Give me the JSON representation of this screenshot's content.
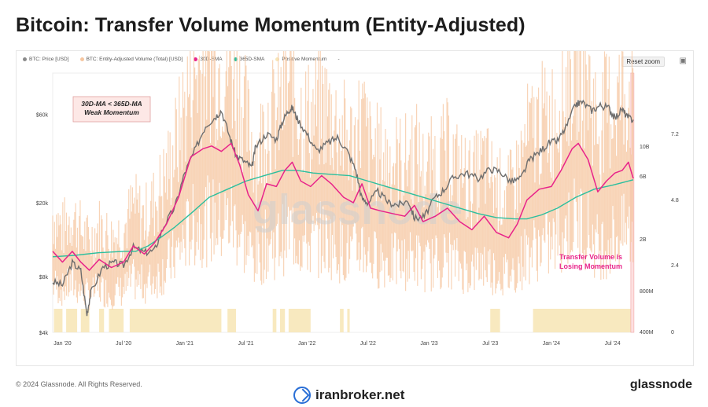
{
  "title": "Bitcoin: Transfer Volume Momentum (Entity-Adjusted)",
  "legend": [
    {
      "label": "BTC: Price [USD]",
      "color": "#8a8a8a"
    },
    {
      "label": "BTC: Entity-Adjusted Volume (Total) [USD]",
      "color": "#f6c6a0"
    },
    {
      "label": "30D-SMA",
      "color": "#e8238a"
    },
    {
      "label": "365D-SMA",
      "color": "#2bbf9e"
    },
    {
      "label": "Positive Momentum",
      "color": "#f7e6b8"
    },
    {
      "label": "-",
      "color": "#bbbbbb"
    }
  ],
  "reset_zoom_label": "Reset zoom",
  "camera_icon": "camera-icon",
  "watermark": "glassnode",
  "annotation_box": {
    "line1": "30D-MA < 365D-MA",
    "line2": "Weak Momentum"
  },
  "annotation_pink": {
    "line1": "Transfer Volume is",
    "line2": "Losing Momentum"
  },
  "footer_copyright": "© 2024 Glassnode. All Rights Reserved.",
  "footer_brand": "glassnode",
  "broker_name": "iranbroker.net",
  "colors": {
    "price": "#6e6e6e",
    "volume": "#f6c6a0",
    "sma30": "#e8238a",
    "sma365": "#2bbf9e",
    "positive": "#f8e9bf",
    "highlight": "#fde0e0"
  },
  "chart_data": {
    "type": "line",
    "x_tick_labels": [
      "Jan '20",
      "Jul '20",
      "Jan '21",
      "Jul '21",
      "Jan '22",
      "Jul '22",
      "Jan '23",
      "Jul '23",
      "Jan '24",
      "Jul '24"
    ],
    "y_left_ticks": [
      "$60k",
      "$20k",
      "$8k",
      "$4k"
    ],
    "y_mid_ticks": [
      "10B",
      "6B",
      "2B",
      "800M",
      "400M"
    ],
    "y_right_ticks": [
      "7.2",
      "4.8",
      "2.4",
      "0"
    ],
    "y_left_scale": "log",
    "y_left_range": [
      4000,
      100000
    ],
    "x_range": [
      2019.92,
      2024.67
    ],
    "series": [
      {
        "name": "BTC: Price [USD]",
        "points": [
          [
            2019.92,
            7500
          ],
          [
            2020.0,
            7200
          ],
          [
            2020.08,
            9500
          ],
          [
            2020.15,
            8600
          ],
          [
            2020.2,
            5000
          ],
          [
            2020.23,
            6500
          ],
          [
            2020.33,
            9000
          ],
          [
            2020.42,
            9500
          ],
          [
            2020.5,
            9200
          ],
          [
            2020.58,
            11500
          ],
          [
            2020.67,
            10800
          ],
          [
            2020.75,
            11000
          ],
          [
            2020.83,
            15000
          ],
          [
            2020.92,
            19000
          ],
          [
            2021.0,
            29000
          ],
          [
            2021.08,
            38000
          ],
          [
            2021.17,
            52000
          ],
          [
            2021.25,
            58000
          ],
          [
            2021.3,
            63000
          ],
          [
            2021.37,
            45000
          ],
          [
            2021.42,
            36000
          ],
          [
            2021.5,
            33000
          ],
          [
            2021.55,
            31000
          ],
          [
            2021.58,
            40000
          ],
          [
            2021.67,
            47000
          ],
          [
            2021.75,
            44000
          ],
          [
            2021.8,
            55000
          ],
          [
            2021.85,
            63000
          ],
          [
            2021.88,
            65000
          ],
          [
            2021.92,
            57000
          ],
          [
            2022.0,
            47000
          ],
          [
            2022.08,
            38000
          ],
          [
            2022.17,
            42000
          ],
          [
            2022.25,
            45000
          ],
          [
            2022.33,
            38000
          ],
          [
            2022.4,
            30000
          ],
          [
            2022.45,
            21000
          ],
          [
            2022.5,
            20000
          ],
          [
            2022.58,
            23000
          ],
          [
            2022.67,
            20000
          ],
          [
            2022.75,
            19500
          ],
          [
            2022.83,
            20500
          ],
          [
            2022.88,
            16500
          ],
          [
            2022.96,
            16800
          ],
          [
            2023.04,
            21000
          ],
          [
            2023.12,
            23500
          ],
          [
            2023.2,
            27500
          ],
          [
            2023.3,
            29000
          ],
          [
            2023.4,
            27000
          ],
          [
            2023.5,
            30500
          ],
          [
            2023.58,
            29500
          ],
          [
            2023.67,
            26000
          ],
          [
            2023.75,
            27000
          ],
          [
            2023.82,
            34000
          ],
          [
            2023.9,
            37500
          ],
          [
            2023.98,
            42000
          ],
          [
            2024.05,
            43000
          ],
          [
            2024.12,
            51000
          ],
          [
            2024.2,
            68000
          ],
          [
            2024.25,
            70000
          ],
          [
            2024.33,
            63000
          ],
          [
            2024.4,
            67000
          ],
          [
            2024.47,
            65000
          ],
          [
            2024.52,
            57000
          ],
          [
            2024.58,
            64000
          ],
          [
            2024.62,
            58000
          ],
          [
            2024.67,
            56000
          ]
        ]
      },
      {
        "name": "30D-SMA",
        "points": [
          [
            2019.92,
            3.0
          ],
          [
            2020.0,
            2.6
          ],
          [
            2020.08,
            3.0
          ],
          [
            2020.15,
            2.6
          ],
          [
            2020.22,
            2.3
          ],
          [
            2020.3,
            2.7
          ],
          [
            2020.4,
            2.4
          ],
          [
            2020.5,
            2.6
          ],
          [
            2020.58,
            3.2
          ],
          [
            2020.67,
            2.9
          ],
          [
            2020.75,
            3.3
          ],
          [
            2020.85,
            4.0
          ],
          [
            2020.95,
            5.0
          ],
          [
            2021.05,
            6.5
          ],
          [
            2021.15,
            6.8
          ],
          [
            2021.22,
            6.9
          ],
          [
            2021.3,
            6.7
          ],
          [
            2021.38,
            7.0
          ],
          [
            2021.45,
            6.2
          ],
          [
            2021.52,
            5.1
          ],
          [
            2021.6,
            4.5
          ],
          [
            2021.67,
            5.5
          ],
          [
            2021.75,
            5.4
          ],
          [
            2021.82,
            6.0
          ],
          [
            2021.88,
            6.3
          ],
          [
            2021.95,
            5.6
          ],
          [
            2022.03,
            5.4
          ],
          [
            2022.12,
            5.8
          ],
          [
            2022.2,
            5.5
          ],
          [
            2022.3,
            5.0
          ],
          [
            2022.38,
            4.8
          ],
          [
            2022.45,
            5.5
          ],
          [
            2022.52,
            4.6
          ],
          [
            2022.6,
            4.5
          ],
          [
            2022.7,
            4.4
          ],
          [
            2022.8,
            4.3
          ],
          [
            2022.88,
            4.7
          ],
          [
            2022.95,
            4.1
          ],
          [
            2023.05,
            4.3
          ],
          [
            2023.15,
            4.6
          ],
          [
            2023.25,
            4.1
          ],
          [
            2023.35,
            3.8
          ],
          [
            2023.45,
            4.3
          ],
          [
            2023.55,
            3.7
          ],
          [
            2023.65,
            3.5
          ],
          [
            2023.72,
            4.0
          ],
          [
            2023.8,
            4.9
          ],
          [
            2023.9,
            5.3
          ],
          [
            2024.0,
            5.4
          ],
          [
            2024.08,
            6.0
          ],
          [
            2024.17,
            6.8
          ],
          [
            2024.22,
            7.0
          ],
          [
            2024.3,
            6.4
          ],
          [
            2024.38,
            5.2
          ],
          [
            2024.45,
            5.6
          ],
          [
            2024.52,
            5.9
          ],
          [
            2024.58,
            6.0
          ],
          [
            2024.63,
            6.3
          ],
          [
            2024.67,
            5.7
          ]
        ]
      },
      {
        "name": "365D-SMA",
        "points": [
          [
            2019.92,
            2.8
          ],
          [
            2020.1,
            2.85
          ],
          [
            2020.3,
            2.95
          ],
          [
            2020.5,
            3.0
          ],
          [
            2020.6,
            3.0
          ],
          [
            2020.7,
            3.2
          ],
          [
            2020.8,
            3.5
          ],
          [
            2020.92,
            3.9
          ],
          [
            2021.05,
            4.4
          ],
          [
            2021.2,
            5.0
          ],
          [
            2021.35,
            5.3
          ],
          [
            2021.5,
            5.6
          ],
          [
            2021.65,
            5.8
          ],
          [
            2021.8,
            6.0
          ],
          [
            2021.92,
            6.0
          ],
          [
            2022.05,
            5.9
          ],
          [
            2022.2,
            5.85
          ],
          [
            2022.35,
            5.8
          ],
          [
            2022.5,
            5.6
          ],
          [
            2022.65,
            5.4
          ],
          [
            2022.8,
            5.2
          ],
          [
            2022.95,
            5.0
          ],
          [
            2023.1,
            4.8
          ],
          [
            2023.25,
            4.6
          ],
          [
            2023.4,
            4.4
          ],
          [
            2023.55,
            4.25
          ],
          [
            2023.7,
            4.2
          ],
          [
            2023.8,
            4.2
          ],
          [
            2023.92,
            4.35
          ],
          [
            2024.05,
            4.6
          ],
          [
            2024.2,
            5.0
          ],
          [
            2024.35,
            5.3
          ],
          [
            2024.5,
            5.45
          ],
          [
            2024.67,
            5.65
          ]
        ]
      }
    ],
    "positive_momentum_periods": [
      [
        2019.93,
        2020.0
      ],
      [
        2020.03,
        2020.12
      ],
      [
        2020.15,
        2020.22
      ],
      [
        2020.3,
        2020.34
      ],
      [
        2020.38,
        2020.5
      ],
      [
        2020.55,
        2021.3
      ],
      [
        2021.35,
        2021.42
      ],
      [
        2021.72,
        2021.75
      ],
      [
        2021.78,
        2021.82
      ],
      [
        2021.85,
        2022.03
      ],
      [
        2022.27,
        2022.3
      ],
      [
        2022.33,
        2022.35
      ],
      [
        2023.5,
        2023.58
      ],
      [
        2023.85,
        2024.67
      ]
    ],
    "highlight_region": [
      2024.65,
      2024.67
    ]
  }
}
